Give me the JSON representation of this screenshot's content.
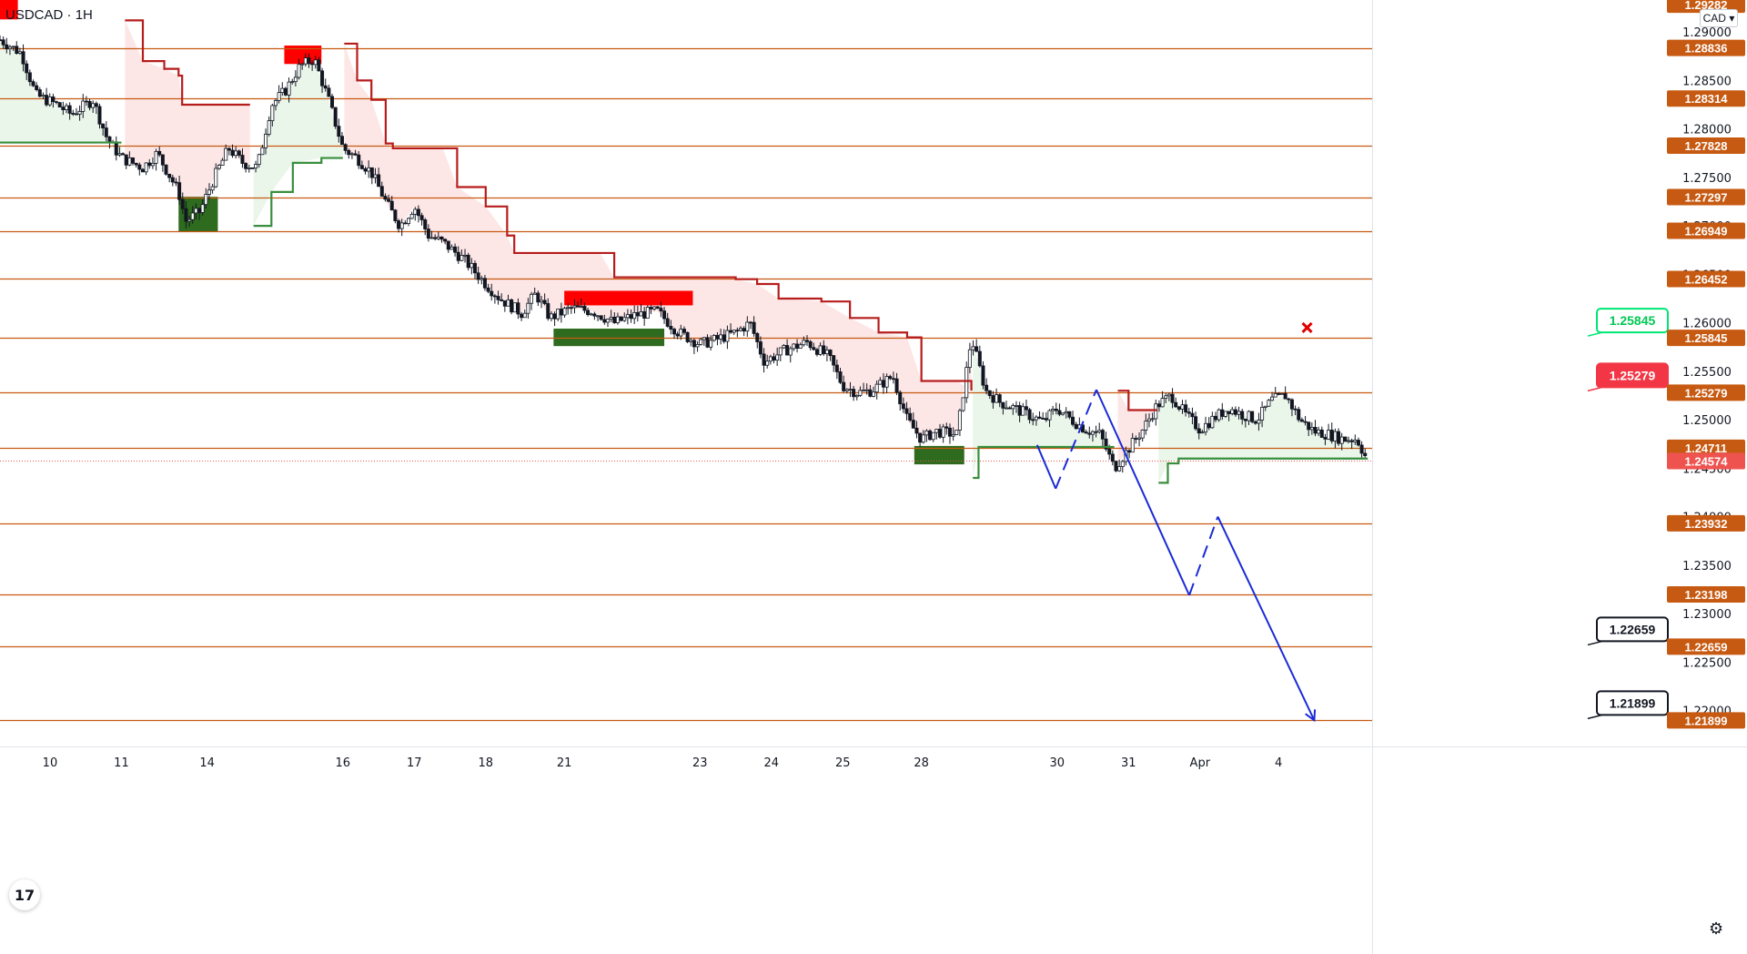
{
  "header": {
    "symbol": "USDCAD",
    "interval": "1H"
  },
  "toolbar": {
    "currency_label": "CAD",
    "currency_icon": "chevron-down-icon",
    "logo": "tradingview-logo",
    "settings_icon": "gear-icon"
  },
  "chart_data": {
    "type": "candlestick",
    "symbol": "USDCAD",
    "interval": "1H",
    "y_range": [
      1.2163,
      1.2933
    ],
    "price_axis_ticks": [
      "1.29000",
      "1.28500",
      "1.28000",
      "1.27500",
      "1.27000",
      "1.26500",
      "1.26000",
      "1.25500",
      "1.25000",
      "1.24500",
      "1.24000",
      "1.23500",
      "1.23000",
      "1.22500",
      "1.22000"
    ],
    "time_axis_ticks": [
      {
        "label": "10",
        "day": 0.7
      },
      {
        "label": "11",
        "day": 1.7
      },
      {
        "label": "14",
        "day": 2.9
      },
      {
        "label": "16",
        "day": 4.8
      },
      {
        "label": "17",
        "day": 5.8
      },
      {
        "label": "18",
        "day": 6.8
      },
      {
        "label": "21",
        "day": 7.9
      },
      {
        "label": "23",
        "day": 9.8
      },
      {
        "label": "24",
        "day": 10.8
      },
      {
        "label": "25",
        "day": 11.8
      },
      {
        "label": "28",
        "day": 12.9
      },
      {
        "label": "30",
        "day": 14.8
      },
      {
        "label": "31",
        "day": 15.8
      },
      {
        "label": "Apr",
        "day": 16.8
      },
      {
        "label": "4",
        "day": 17.9
      }
    ],
    "horizontal_levels": [
      "1.28836",
      "1.28314",
      "1.27828",
      "1.27297",
      "1.26949",
      "1.26452",
      "1.25845",
      "1.25279",
      "1.24711",
      "1.23932",
      "1.23198",
      "1.22659",
      "1.21899"
    ],
    "current_price": "1.24574",
    "top_partial_label": "1.29282",
    "level_color": "#c75a12",
    "current_price_color": "#ef5350",
    "callouts": [
      {
        "label": "1.25845",
        "style": "green"
      },
      {
        "label": "1.25279",
        "style": "red"
      },
      {
        "label": "1.22659",
        "style": "black"
      },
      {
        "label": "1.21899",
        "style": "black"
      }
    ],
    "supertrend_colors": {
      "down": "#b71c1c",
      "up": "#388e3c",
      "down_fill": "#fde2e2",
      "up_fill": "#e6f4e6"
    },
    "zones": [
      {
        "type": "supply",
        "t": [
          0,
          0.25
        ],
        "price": [
          1.2913,
          1.2933
        ]
      },
      {
        "type": "demand",
        "t": [
          2.5,
          3.05
        ],
        "price": [
          1.2694,
          1.273
        ]
      },
      {
        "type": "supply",
        "t": [
          3.98,
          4.5
        ],
        "price": [
          1.2867,
          1.2886
        ]
      },
      {
        "type": "supply",
        "t": [
          7.9,
          9.7
        ],
        "price": [
          1.2618,
          1.2633
        ]
      },
      {
        "type": "demand",
        "t": [
          7.75,
          9.3
        ],
        "price": [
          1.2576,
          1.2594
        ]
      },
      {
        "type": "demand",
        "t": [
          12.8,
          13.5
        ],
        "price": [
          1.2454,
          1.2473
        ]
      }
    ],
    "projection_path": [
      {
        "day": 14.52,
        "price": 1.2474
      },
      {
        "day": 14.78,
        "price": 1.2429
      },
      {
        "day": 15.35,
        "price": 1.2531
      },
      {
        "day": 16.65,
        "price": 1.2319
      },
      {
        "day": 17.05,
        "price": 1.24
      },
      {
        "day": 18.4,
        "price": 1.219
      }
    ],
    "invalid_marker": {
      "day": 18.3,
      "price": 1.2595
    },
    "series": [
      {
        "day": 0.0,
        "price": 1.2892
      },
      {
        "day": 0.3,
        "price": 1.2878
      },
      {
        "day": 0.5,
        "price": 1.2835
      },
      {
        "day": 0.8,
        "price": 1.2825
      },
      {
        "day": 1.0,
        "price": 1.2815
      },
      {
        "day": 1.3,
        "price": 1.283
      },
      {
        "day": 1.5,
        "price": 1.279
      },
      {
        "day": 1.7,
        "price": 1.277
      },
      {
        "day": 2.0,
        "price": 1.276
      },
      {
        "day": 2.2,
        "price": 1.2775
      },
      {
        "day": 2.5,
        "price": 1.2735
      },
      {
        "day": 2.6,
        "price": 1.2705
      },
      {
        "day": 2.8,
        "price": 1.2715
      },
      {
        "day": 3.0,
        "price": 1.275
      },
      {
        "day": 3.2,
        "price": 1.278
      },
      {
        "day": 3.4,
        "price": 1.2765
      },
      {
        "day": 3.6,
        "price": 1.276
      },
      {
        "day": 3.8,
        "price": 1.2825
      },
      {
        "day": 4.0,
        "price": 1.284
      },
      {
        "day": 4.2,
        "price": 1.2865
      },
      {
        "day": 4.4,
        "price": 1.2872
      },
      {
        "day": 4.6,
        "price": 1.283
      },
      {
        "day": 4.8,
        "price": 1.278
      },
      {
        "day": 5.0,
        "price": 1.277
      },
      {
        "day": 5.2,
        "price": 1.2755
      },
      {
        "day": 5.4,
        "price": 1.2725
      },
      {
        "day": 5.6,
        "price": 1.27
      },
      {
        "day": 5.8,
        "price": 1.272
      },
      {
        "day": 6.0,
        "price": 1.269
      },
      {
        "day": 6.2,
        "price": 1.2683
      },
      {
        "day": 6.5,
        "price": 1.2665
      },
      {
        "day": 6.8,
        "price": 1.264
      },
      {
        "day": 7.0,
        "price": 1.2625
      },
      {
        "day": 7.3,
        "price": 1.261
      },
      {
        "day": 7.5,
        "price": 1.263
      },
      {
        "day": 7.7,
        "price": 1.2605
      },
      {
        "day": 8.0,
        "price": 1.2615
      },
      {
        "day": 8.3,
        "price": 1.2612
      },
      {
        "day": 8.6,
        "price": 1.26
      },
      {
        "day": 8.9,
        "price": 1.2608
      },
      {
        "day": 9.2,
        "price": 1.2612
      },
      {
        "day": 9.5,
        "price": 1.259
      },
      {
        "day": 9.8,
        "price": 1.2578
      },
      {
        "day": 10.0,
        "price": 1.2582
      },
      {
        "day": 10.3,
        "price": 1.259
      },
      {
        "day": 10.5,
        "price": 1.26
      },
      {
        "day": 10.7,
        "price": 1.256
      },
      {
        "day": 11.0,
        "price": 1.2572
      },
      {
        "day": 11.3,
        "price": 1.258
      },
      {
        "day": 11.6,
        "price": 1.2565
      },
      {
        "day": 11.8,
        "price": 1.2535
      },
      {
        "day": 12.0,
        "price": 1.2528
      },
      {
        "day": 12.2,
        "price": 1.253
      },
      {
        "day": 12.5,
        "price": 1.2545
      },
      {
        "day": 12.7,
        "price": 1.25
      },
      {
        "day": 12.9,
        "price": 1.248
      },
      {
        "day": 13.1,
        "price": 1.2488
      },
      {
        "day": 13.4,
        "price": 1.2485
      },
      {
        "day": 13.6,
        "price": 1.2585
      },
      {
        "day": 13.8,
        "price": 1.253
      },
      {
        "day": 14.0,
        "price": 1.2518
      },
      {
        "day": 14.2,
        "price": 1.2512
      },
      {
        "day": 14.4,
        "price": 1.2505
      },
      {
        "day": 14.6,
        "price": 1.2498
      },
      {
        "day": 14.8,
        "price": 1.2512
      },
      {
        "day": 15.0,
        "price": 1.25
      },
      {
        "day": 15.2,
        "price": 1.249
      },
      {
        "day": 15.4,
        "price": 1.2485
      },
      {
        "day": 15.6,
        "price": 1.245
      },
      {
        "day": 15.8,
        "price": 1.247
      },
      {
        "day": 16.0,
        "price": 1.249
      },
      {
        "day": 16.2,
        "price": 1.2515
      },
      {
        "day": 16.4,
        "price": 1.2525
      },
      {
        "day": 16.6,
        "price": 1.2505
      },
      {
        "day": 16.8,
        "price": 1.249
      },
      {
        "day": 17.0,
        "price": 1.2502
      },
      {
        "day": 17.2,
        "price": 1.2512
      },
      {
        "day": 17.4,
        "price": 1.2505
      },
      {
        "day": 17.6,
        "price": 1.25
      },
      {
        "day": 17.8,
        "price": 1.252
      },
      {
        "day": 18.0,
        "price": 1.2525
      },
      {
        "day": 18.2,
        "price": 1.25
      },
      {
        "day": 18.4,
        "price": 1.2488
      },
      {
        "day": 18.6,
        "price": 1.2485
      },
      {
        "day": 18.8,
        "price": 1.248
      },
      {
        "day": 19.0,
        "price": 1.248
      },
      {
        "day": 19.15,
        "price": 1.2457
      }
    ],
    "supertrend": [
      {
        "day": 0.0,
        "side": "up",
        "price": 1.2786
      },
      {
        "day": 1.7,
        "side": "up",
        "price": 1.2786
      },
      {
        "day": 1.75,
        "side": "down",
        "price": 1.2912
      },
      {
        "day": 2.0,
        "side": "down",
        "price": 1.287
      },
      {
        "day": 2.3,
        "side": "down",
        "price": 1.2862
      },
      {
        "day": 2.5,
        "side": "down",
        "price": 1.2855
      },
      {
        "day": 2.55,
        "side": "down",
        "price": 1.2825
      },
      {
        "day": 3.5,
        "side": "down",
        "price": 1.2825
      },
      {
        "day": 3.55,
        "side": "up",
        "price": 1.27
      },
      {
        "day": 3.8,
        "side": "up",
        "price": 1.2735
      },
      {
        "day": 4.1,
        "side": "up",
        "price": 1.2765
      },
      {
        "day": 4.5,
        "side": "up",
        "price": 1.277
      },
      {
        "day": 4.8,
        "side": "up",
        "price": 1.277
      },
      {
        "day": 4.82,
        "side": "down",
        "price": 1.2888
      },
      {
        "day": 5.0,
        "side": "down",
        "price": 1.285
      },
      {
        "day": 5.2,
        "side": "down",
        "price": 1.283
      },
      {
        "day": 5.4,
        "side": "down",
        "price": 1.2785
      },
      {
        "day": 5.5,
        "side": "down",
        "price": 1.278
      },
      {
        "day": 6.2,
        "side": "down",
        "price": 1.278
      },
      {
        "day": 6.4,
        "side": "down",
        "price": 1.274
      },
      {
        "day": 6.8,
        "side": "down",
        "price": 1.272
      },
      {
        "day": 7.1,
        "side": "down",
        "price": 1.269
      },
      {
        "day": 7.2,
        "side": "down",
        "price": 1.2672
      },
      {
        "day": 8.4,
        "side": "down",
        "price": 1.2672
      },
      {
        "day": 8.6,
        "side": "down",
        "price": 1.2647
      },
      {
        "day": 10.3,
        "side": "down",
        "price": 1.2645
      },
      {
        "day": 10.6,
        "side": "down",
        "price": 1.264
      },
      {
        "day": 10.9,
        "side": "down",
        "price": 1.2625
      },
      {
        "day": 11.5,
        "side": "down",
        "price": 1.2622
      },
      {
        "day": 11.9,
        "side": "down",
        "price": 1.2605
      },
      {
        "day": 12.3,
        "side": "down",
        "price": 1.259
      },
      {
        "day": 12.7,
        "side": "down",
        "price": 1.2585
      },
      {
        "day": 12.9,
        "side": "down",
        "price": 1.254
      },
      {
        "day": 13.4,
        "side": "down",
        "price": 1.254
      },
      {
        "day": 13.6,
        "side": "down",
        "price": 1.253
      },
      {
        "day": 13.62,
        "side": "up",
        "price": 1.244
      },
      {
        "day": 13.7,
        "side": "up",
        "price": 1.2472
      },
      {
        "day": 15.6,
        "side": "up",
        "price": 1.2472
      },
      {
        "day": 15.65,
        "side": "down",
        "price": 1.253
      },
      {
        "day": 15.8,
        "side": "down",
        "price": 1.251
      },
      {
        "day": 16.2,
        "side": "down",
        "price": 1.251
      },
      {
        "day": 16.22,
        "side": "up",
        "price": 1.2435
      },
      {
        "day": 16.35,
        "side": "up",
        "price": 1.2455
      },
      {
        "day": 16.5,
        "side": "up",
        "price": 1.246
      },
      {
        "day": 19.15,
        "side": "up",
        "price": 1.246
      }
    ]
  }
}
